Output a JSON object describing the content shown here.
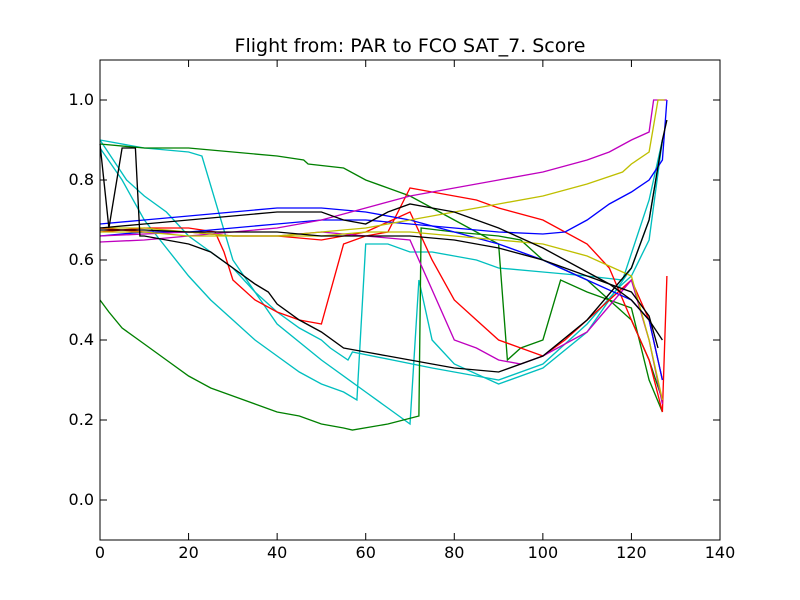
{
  "chart_data": {
    "type": "line",
    "title": "Flight from: PAR to FCO  SAT_7. Score",
    "xlabel": "",
    "ylabel": "",
    "xlim": [
      0,
      140
    ],
    "ylim": [
      -0.1,
      1.1
    ],
    "x_ticks": [
      0,
      20,
      40,
      60,
      80,
      100,
      120,
      140
    ],
    "x_tick_labels": [
      "0",
      "20",
      "40",
      "60",
      "80",
      "100",
      "120",
      "140"
    ],
    "y_ticks": [
      0.0,
      0.2,
      0.4,
      0.6,
      0.8,
      1.0
    ],
    "y_tick_labels": [
      "0.0",
      "0.2",
      "0.4",
      "0.6",
      "0.8",
      "1.0"
    ],
    "grid": false,
    "legend": "none",
    "colors": {
      "blue": "#0000ff",
      "green": "#008000",
      "red": "#ff0000",
      "cyan": "#00bfbf",
      "magenta": "#bf00bf",
      "olive": "#bfbf00",
      "black": "#000000"
    },
    "series": [
      {
        "color": "#00bfbf",
        "x": [
          0,
          3,
          6,
          10,
          15,
          20,
          25,
          30,
          35,
          40,
          45,
          50,
          52,
          56,
          57,
          75,
          80,
          85,
          90,
          100,
          110,
          117,
          120,
          124,
          127
        ],
        "y": [
          0.9,
          0.85,
          0.8,
          0.76,
          0.72,
          0.66,
          0.62,
          0.58,
          0.52,
          0.47,
          0.43,
          0.4,
          0.38,
          0.35,
          0.37,
          0.33,
          0.32,
          0.31,
          0.3,
          0.34,
          0.44,
          0.53,
          0.56,
          0.65,
          0.9
        ]
      },
      {
        "color": "#00bfbf",
        "x": [
          0,
          5,
          10,
          15,
          20,
          25,
          30,
          35,
          40,
          45,
          50,
          55,
          58,
          60,
          65,
          70,
          75,
          80,
          85,
          90,
          100,
          110,
          118,
          124,
          127
        ],
        "y": [
          0.88,
          0.8,
          0.7,
          0.63,
          0.56,
          0.5,
          0.45,
          0.4,
          0.36,
          0.32,
          0.29,
          0.27,
          0.25,
          0.64,
          0.64,
          0.62,
          0.62,
          0.61,
          0.6,
          0.58,
          0.57,
          0.56,
          0.55,
          0.75,
          0.9
        ]
      },
      {
        "color": "#00bfbf",
        "x": [
          0,
          10,
          20,
          23,
          30,
          40,
          50,
          60,
          65,
          70,
          72,
          75,
          80,
          90,
          100,
          110,
          120,
          124,
          127
        ],
        "y": [
          0.9,
          0.88,
          0.87,
          0.86,
          0.6,
          0.44,
          0.35,
          0.27,
          0.23,
          0.19,
          0.55,
          0.4,
          0.34,
          0.29,
          0.33,
          0.42,
          0.58,
          0.7,
          0.9
        ]
      },
      {
        "color": "#008000",
        "x": [
          0,
          2,
          5,
          10,
          15,
          20,
          25,
          30,
          35,
          40,
          45,
          50,
          55,
          57,
          65,
          72,
          72.5,
          80,
          90,
          95,
          100,
          110,
          120,
          124,
          127
        ],
        "y": [
          0.5,
          0.47,
          0.43,
          0.39,
          0.35,
          0.31,
          0.28,
          0.26,
          0.24,
          0.22,
          0.21,
          0.19,
          0.18,
          0.175,
          0.19,
          0.21,
          0.68,
          0.67,
          0.66,
          0.65,
          0.6,
          0.55,
          0.45,
          0.35,
          0.25
        ]
      },
      {
        "color": "#008000",
        "x": [
          0,
          10,
          20,
          30,
          40,
          46,
          47,
          55,
          60,
          65,
          70,
          80,
          90,
          92,
          95,
          100,
          104,
          110,
          120,
          124,
          127
        ],
        "y": [
          0.89,
          0.88,
          0.88,
          0.87,
          0.86,
          0.85,
          0.84,
          0.83,
          0.8,
          0.78,
          0.76,
          0.7,
          0.64,
          0.35,
          0.38,
          0.4,
          0.55,
          0.52,
          0.48,
          0.3,
          0.22
        ]
      },
      {
        "color": "#ff0000",
        "x": [
          0,
          10,
          20,
          26,
          28,
          30,
          35,
          40,
          45,
          50,
          55,
          60,
          65,
          70,
          75,
          80,
          85,
          90,
          100,
          110,
          115,
          120,
          124,
          127,
          128
        ],
        "y": [
          0.67,
          0.68,
          0.68,
          0.67,
          0.62,
          0.55,
          0.5,
          0.47,
          0.45,
          0.44,
          0.64,
          0.66,
          0.67,
          0.78,
          0.77,
          0.76,
          0.75,
          0.73,
          0.7,
          0.64,
          0.58,
          0.45,
          0.35,
          0.22,
          0.56
        ]
      },
      {
        "color": "#ff0000",
        "x": [
          0,
          10,
          20,
          30,
          40,
          50,
          60,
          70,
          75,
          80,
          85,
          90,
          95,
          100,
          105,
          110,
          115,
          120,
          124,
          127
        ],
        "y": [
          0.68,
          0.67,
          0.67,
          0.66,
          0.66,
          0.65,
          0.67,
          0.72,
          0.6,
          0.5,
          0.45,
          0.4,
          0.38,
          0.36,
          0.4,
          0.45,
          0.5,
          0.55,
          0.45,
          0.3
        ]
      },
      {
        "color": "#0000ff",
        "x": [
          0,
          10,
          20,
          30,
          40,
          50,
          60,
          70,
          80,
          90,
          100,
          105,
          110,
          115,
          120,
          124,
          127,
          128
        ],
        "y": [
          0.66,
          0.67,
          0.67,
          0.68,
          0.69,
          0.7,
          0.7,
          0.69,
          0.68,
          0.67,
          0.665,
          0.67,
          0.7,
          0.74,
          0.77,
          0.8,
          0.85,
          1.0
        ]
      },
      {
        "color": "#0000ff",
        "x": [
          0,
          10,
          20,
          30,
          40,
          50,
          60,
          70,
          80,
          90,
          100,
          110,
          120,
          124,
          127
        ],
        "y": [
          0.69,
          0.7,
          0.71,
          0.72,
          0.73,
          0.73,
          0.72,
          0.7,
          0.67,
          0.64,
          0.6,
          0.55,
          0.5,
          0.45,
          0.3
        ]
      },
      {
        "color": "#bf00bf",
        "x": [
          0,
          10,
          20,
          30,
          40,
          50,
          60,
          70,
          80,
          90,
          100,
          110,
          115,
          120,
          124,
          125,
          128
        ],
        "y": [
          0.645,
          0.65,
          0.66,
          0.67,
          0.68,
          0.7,
          0.73,
          0.76,
          0.78,
          0.8,
          0.82,
          0.85,
          0.87,
          0.9,
          0.92,
          1.0,
          1.0
        ]
      },
      {
        "color": "#bf00bf",
        "x": [
          0,
          10,
          20,
          30,
          40,
          50,
          60,
          70,
          80,
          85,
          90,
          95,
          100,
          110,
          120,
          124,
          127
        ],
        "y": [
          0.66,
          0.665,
          0.67,
          0.66,
          0.66,
          0.67,
          0.66,
          0.65,
          0.4,
          0.38,
          0.35,
          0.34,
          0.36,
          0.42,
          0.55,
          0.4,
          0.24
        ]
      },
      {
        "color": "#bfbf00",
        "x": [
          0,
          10,
          20,
          30,
          40,
          50,
          60,
          70,
          80,
          90,
          100,
          110,
          118,
          120,
          124,
          126,
          127.5
        ],
        "y": [
          0.67,
          0.67,
          0.66,
          0.66,
          0.66,
          0.67,
          0.68,
          0.7,
          0.72,
          0.74,
          0.76,
          0.79,
          0.82,
          0.84,
          0.87,
          1.0,
          1.0
        ]
      },
      {
        "color": "#bfbf00",
        "x": [
          0,
          10,
          20,
          30,
          40,
          50,
          60,
          70,
          80,
          90,
          100,
          110,
          120,
          124,
          127
        ],
        "y": [
          0.68,
          0.68,
          0.67,
          0.66,
          0.66,
          0.66,
          0.67,
          0.67,
          0.66,
          0.65,
          0.64,
          0.61,
          0.56,
          0.4,
          0.25
        ]
      },
      {
        "color": "#000000",
        "x": [
          0,
          2,
          5,
          8,
          9,
          10,
          15,
          20,
          25,
          30,
          35,
          38,
          40,
          45,
          50,
          55,
          60,
          65,
          70,
          75,
          80,
          90,
          100,
          110,
          120,
          124,
          127,
          128
        ],
        "y": [
          0.89,
          0.68,
          0.88,
          0.88,
          0.66,
          0.66,
          0.65,
          0.64,
          0.62,
          0.58,
          0.54,
          0.52,
          0.49,
          0.45,
          0.42,
          0.38,
          0.37,
          0.36,
          0.35,
          0.34,
          0.33,
          0.32,
          0.36,
          0.45,
          0.58,
          0.7,
          0.9,
          0.95
        ]
      },
      {
        "color": "#000000",
        "x": [
          0,
          10,
          20,
          30,
          40,
          50,
          55,
          60,
          65,
          70,
          75,
          80,
          90,
          100,
          110,
          115,
          120,
          124,
          127
        ],
        "y": [
          0.68,
          0.69,
          0.7,
          0.71,
          0.72,
          0.72,
          0.7,
          0.69,
          0.72,
          0.74,
          0.73,
          0.72,
          0.68,
          0.63,
          0.57,
          0.54,
          0.5,
          0.45,
          0.4
        ]
      },
      {
        "color": "#000000",
        "x": [
          0,
          10,
          20,
          30,
          40,
          50,
          60,
          70,
          80,
          90,
          100,
          110,
          120,
          124,
          126
        ],
        "y": [
          0.675,
          0.675,
          0.67,
          0.67,
          0.67,
          0.66,
          0.66,
          0.66,
          0.65,
          0.63,
          0.6,
          0.56,
          0.52,
          0.46,
          0.38
        ]
      }
    ]
  }
}
